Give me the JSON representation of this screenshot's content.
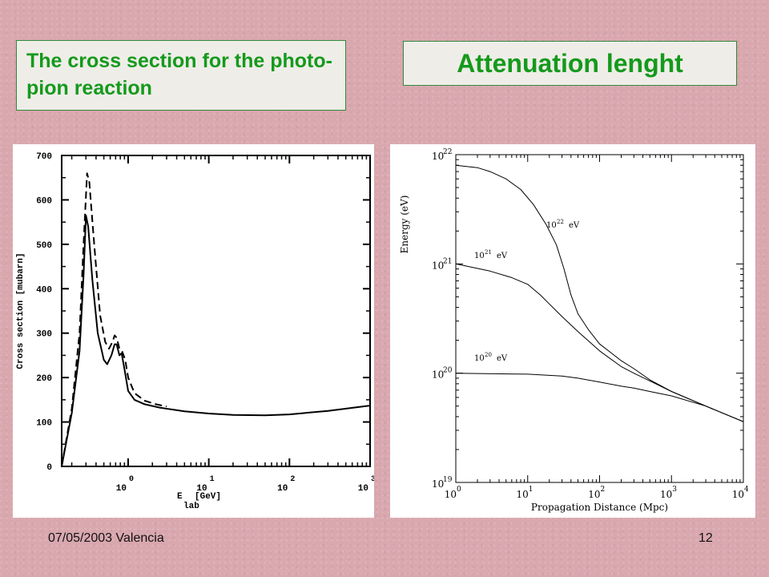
{
  "slide": {
    "left_title": "The cross section for the photo-pion reaction",
    "right_title": "Attenuation lenght",
    "footer_left": "07/05/2003 Valencia",
    "footer_right": "12"
  },
  "chart_data": [
    {
      "type": "line",
      "title": "",
      "xlabel": "E lab [GeV]",
      "ylabel": "Cross section [mubarn]",
      "x_scale": "log",
      "ylim": [
        0,
        700
      ],
      "y_ticks": [
        "0",
        "100",
        "200",
        "300",
        "400",
        "500",
        "600",
        "700"
      ],
      "x_tick_labels": [
        {
          "base": "10",
          "exp": "0"
        },
        {
          "base": "10",
          "exp": "1"
        },
        {
          "base": "10",
          "exp": "2"
        },
        {
          "base": "10",
          "exp": "3"
        }
      ],
      "series": [
        {
          "name": "",
          "style": "solid",
          "points": [
            [
              0.15,
              0
            ],
            [
              0.2,
              120
            ],
            [
              0.25,
              260
            ],
            [
              0.28,
              430
            ],
            [
              0.3,
              565
            ],
            [
              0.32,
              540
            ],
            [
              0.36,
              420
            ],
            [
              0.42,
              300
            ],
            [
              0.5,
              240
            ],
            [
              0.55,
              230
            ],
            [
              0.62,
              250
            ],
            [
              0.68,
              275
            ],
            [
              0.72,
              275
            ],
            [
              0.78,
              250
            ],
            [
              0.83,
              255
            ],
            [
              0.9,
              220
            ],
            [
              1.0,
              170
            ],
            [
              1.2,
              150
            ],
            [
              1.6,
              140
            ],
            [
              2.5,
              132
            ],
            [
              5,
              124
            ],
            [
              10,
              119
            ],
            [
              20,
              116
            ],
            [
              50,
              115
            ],
            [
              100,
              117
            ],
            [
              300,
              125
            ],
            [
              1000,
              137
            ]
          ]
        },
        {
          "name": "",
          "style": "dashed",
          "points": [
            [
              0.15,
              0
            ],
            [
              0.2,
              130
            ],
            [
              0.25,
              300
            ],
            [
              0.28,
              500
            ],
            [
              0.31,
              660
            ],
            [
              0.33,
              640
            ],
            [
              0.38,
              500
            ],
            [
              0.45,
              340
            ],
            [
              0.52,
              280
            ],
            [
              0.58,
              265
            ],
            [
              0.64,
              280
            ],
            [
              0.68,
              295
            ],
            [
              0.72,
              290
            ],
            [
              0.78,
              265
            ],
            [
              0.84,
              260
            ],
            [
              0.92,
              240
            ],
            [
              1.0,
              200
            ],
            [
              1.2,
              165
            ],
            [
              1.6,
              148
            ],
            [
              2.2,
              140
            ],
            [
              3,
              135
            ]
          ]
        }
      ]
    },
    {
      "type": "line",
      "title": "",
      "xlabel": "Propagation Distance (Mpc)",
      "ylabel": "Energy (eV)",
      "x_scale": "log",
      "y_scale": "log",
      "xlim": [
        1,
        10000
      ],
      "ylim": [
        1e+19,
        1e+22
      ],
      "x_tick_labels": [
        {
          "base": "10",
          "exp": "0"
        },
        {
          "base": "10",
          "exp": "1"
        },
        {
          "base": "10",
          "exp": "2"
        },
        {
          "base": "10",
          "exp": "3"
        },
        {
          "base": "10",
          "exp": "4"
        }
      ],
      "y_tick_labels": [
        {
          "base": "10",
          "exp": "19"
        },
        {
          "base": "10",
          "exp": "20"
        },
        {
          "base": "10",
          "exp": "21"
        },
        {
          "base": "10",
          "exp": "22"
        }
      ],
      "series": [
        {
          "label_base": "10",
          "label_exp": "22",
          "label_unit": "eV",
          "points": [
            [
              1,
              8e+21
            ],
            [
              2,
              7.6e+21
            ],
            [
              3,
              7e+21
            ],
            [
              5,
              6e+21
            ],
            [
              8,
              4.8e+21
            ],
            [
              12,
              3.5e+21
            ],
            [
              18,
              2.3e+21
            ],
            [
              25,
              1.5e+21
            ],
            [
              32,
              9e+20
            ],
            [
              40,
              5.2e+20
            ],
            [
              50,
              3.5e+20
            ],
            [
              70,
              2.5e+20
            ],
            [
              100,
              1.85e+20
            ],
            [
              200,
              1.3e+20
            ],
            [
              300,
              1.1e+20
            ],
            [
              500,
              8.7e+19
            ],
            [
              1000,
              6.8e+19
            ],
            [
              3000,
              5e+19
            ],
            [
              10000,
              3.6e+19
            ]
          ]
        },
        {
          "label_base": "10",
          "label_exp": "21",
          "label_unit": "eV",
          "points": [
            [
              1,
              1e+21
            ],
            [
              3,
              8.6e+20
            ],
            [
              6,
              7.5e+20
            ],
            [
              10,
              6.5e+20
            ],
            [
              15,
              5.2e+20
            ],
            [
              20,
              4.3e+20
            ],
            [
              30,
              3.3e+20
            ],
            [
              50,
              2.4e+20
            ],
            [
              100,
              1.6e+20
            ],
            [
              200,
              1.15e+20
            ],
            [
              300,
              1e+20
            ],
            [
              500,
              8.5e+19
            ],
            [
              1000,
              6.8e+19
            ],
            [
              3000,
              5e+19
            ],
            [
              10000,
              3.6e+19
            ]
          ]
        },
        {
          "label_base": "10",
          "label_exp": "20",
          "label_unit": "eV",
          "points": [
            [
              1,
              1e+20
            ],
            [
              10,
              9.8e+19
            ],
            [
              30,
              9.4e+19
            ],
            [
              50,
              9e+19
            ],
            [
              100,
              8.3e+19
            ],
            [
              200,
              7.6e+19
            ],
            [
              300,
              7.3e+19
            ],
            [
              500,
              6.8e+19
            ],
            [
              1000,
              6.2e+19
            ],
            [
              3000,
              5e+19
            ],
            [
              10000,
              3.6e+19
            ]
          ]
        }
      ]
    }
  ]
}
